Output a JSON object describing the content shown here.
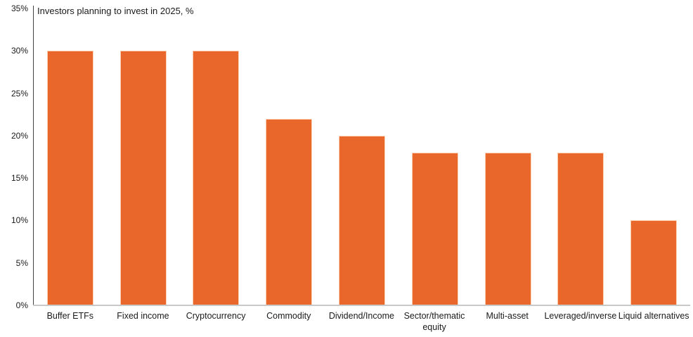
{
  "chart_data": {
    "type": "bar",
    "title": "Investors planning to invest in 2025, %",
    "categories": [
      "Buffer ETFs",
      "Fixed income",
      "Cryptocurrency",
      "Commodity",
      "Dividend/Income",
      "Sector/thematic equity",
      "Multi-asset",
      "Leveraged/inverse",
      "Liquid alternatives"
    ],
    "values": [
      30,
      30,
      30,
      22,
      20,
      18,
      18,
      18,
      10
    ],
    "xlabel": "",
    "ylabel": "",
    "ylim": [
      0,
      35
    ],
    "ytick_step": 5,
    "ytick_labels": [
      "0%",
      "5%",
      "10%",
      "15%",
      "20%",
      "25%",
      "30%",
      "35%"
    ],
    "grid": false,
    "legend": false,
    "colors": {
      "bar_fill": "#ea672b",
      "axis_line": "#404040",
      "baseline": "#c9c9c9",
      "text": "#1a1a1a",
      "background": "#ffffff"
    }
  }
}
